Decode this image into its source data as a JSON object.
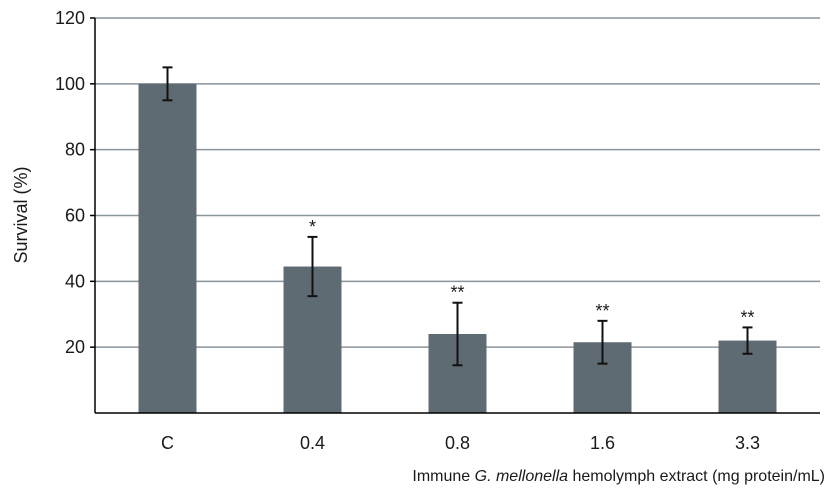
{
  "chart_data": {
    "type": "bar",
    "categories": [
      "C",
      "0.4",
      "0.8",
      "1.6",
      "3.3"
    ],
    "values": [
      100,
      44.5,
      24,
      21.5,
      22
    ],
    "errors": [
      5,
      9,
      9.5,
      6.5,
      4
    ],
    "annotations": [
      "",
      "*",
      "**",
      "**",
      "**"
    ],
    "ylabel": "Survival (%)",
    "xlabel_parts": [
      "Immune ",
      "G. mellonella",
      " hemolymph extract (mg protein/mL)"
    ],
    "ylim": [
      0,
      120
    ],
    "yticks": [
      20,
      40,
      60,
      80,
      100,
      120
    ],
    "grid": true,
    "colors": {
      "bar": "#5f6b72",
      "grid": "#8a949b",
      "axis": "#000000"
    }
  }
}
